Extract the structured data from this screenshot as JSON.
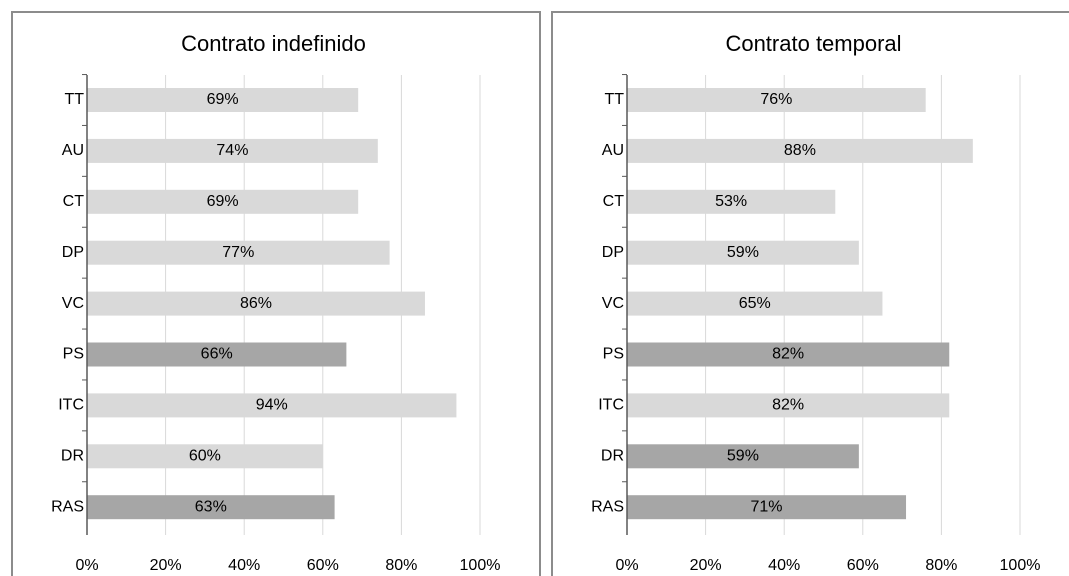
{
  "chart_data": [
    {
      "type": "bar",
      "orientation": "horizontal",
      "title": "Contrato indefinido",
      "categories": [
        "TT",
        "AU",
        "CT",
        "DP",
        "VC",
        "PS",
        "ITC",
        "DR",
        "RAS"
      ],
      "values": [
        69,
        74,
        69,
        77,
        86,
        66,
        94,
        60,
        63
      ],
      "value_labels": [
        "69%",
        "74%",
        "69%",
        "77%",
        "86%",
        "66%",
        "94%",
        "60%",
        "63%"
      ],
      "colors": [
        "#d9d9d9",
        "#d9d9d9",
        "#d9d9d9",
        "#d9d9d9",
        "#d9d9d9",
        "#a6a6a6",
        "#d9d9d9",
        "#d9d9d9",
        "#a6a6a6"
      ],
      "xlim": [
        0,
        100
      ],
      "xticks": [
        {
          "value": 0,
          "label": "0%"
        },
        {
          "value": 20,
          "label": "20%"
        },
        {
          "value": 40,
          "label": "40%"
        },
        {
          "value": 60,
          "label": "60%"
        },
        {
          "value": 80,
          "label": "80%"
        },
        {
          "value": 100,
          "label": "100%"
        }
      ],
      "grid": true
    },
    {
      "type": "bar",
      "orientation": "horizontal",
      "title": "Contrato temporal",
      "categories": [
        "TT",
        "AU",
        "CT",
        "DP",
        "VC",
        "PS",
        "ITC",
        "DR",
        "RAS"
      ],
      "values": [
        76,
        88,
        53,
        59,
        65,
        82,
        82,
        59,
        71
      ],
      "value_labels": [
        "76%",
        "88%",
        "53%",
        "59%",
        "65%",
        "82%",
        "82%",
        "59%",
        "71%"
      ],
      "colors": [
        "#d9d9d9",
        "#d9d9d9",
        "#d9d9d9",
        "#d9d9d9",
        "#d9d9d9",
        "#a6a6a6",
        "#d9d9d9",
        "#a6a6a6",
        "#a6a6a6"
      ],
      "xlim": [
        0,
        100
      ],
      "xticks": [
        {
          "value": 0,
          "label": "0%"
        },
        {
          "value": 20,
          "label": "20%"
        },
        {
          "value": 40,
          "label": "40%"
        },
        {
          "value": 60,
          "label": "60%"
        },
        {
          "value": 80,
          "label": "80%"
        },
        {
          "value": 100,
          "label": "100%"
        }
      ],
      "grid": true
    }
  ]
}
